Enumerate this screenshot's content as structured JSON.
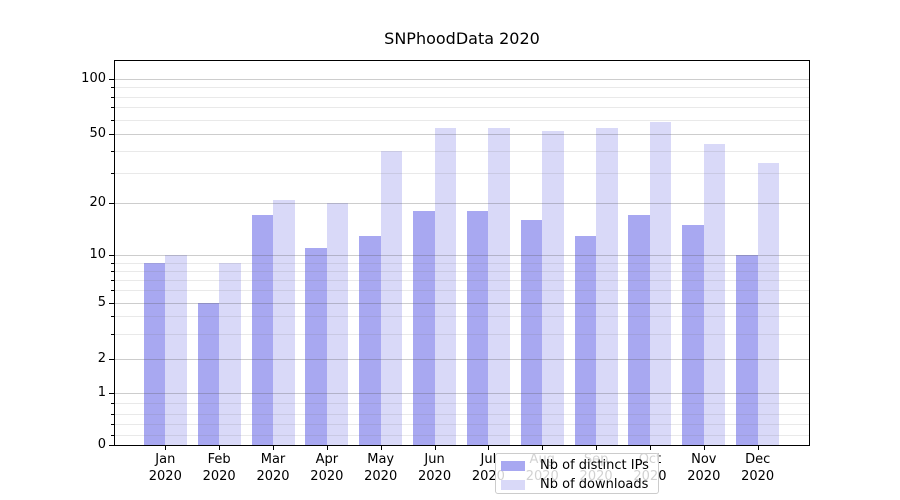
{
  "title": "SNPhoodData 2020",
  "chart_data": {
    "type": "bar",
    "categories": [
      "Jan",
      "Feb",
      "Mar",
      "Apr",
      "May",
      "Jun",
      "Jul",
      "Aug",
      "Sep",
      "Oct",
      "Nov",
      "Dec"
    ],
    "year_label": "2020",
    "series": [
      {
        "name": "Nb of distinct IPs",
        "color": "#a8a8f1",
        "values": [
          9,
          5,
          17,
          11,
          13,
          18,
          18,
          16,
          13,
          17,
          15,
          10
        ]
      },
      {
        "name": "Nb of downloads",
        "color": "#d9d9f8",
        "values": [
          10,
          9,
          21,
          20,
          40,
          54,
          54,
          52,
          54,
          58,
          44,
          34
        ]
      }
    ],
    "yscale": "symlog",
    "yticks": [
      0,
      1,
      2,
      5,
      10,
      20,
      50,
      100
    ],
    "minor_yticks": [
      0.2,
      0.4,
      0.6,
      0.8,
      3,
      4,
      6,
      7,
      8,
      9,
      30,
      40,
      60,
      70,
      80,
      90
    ],
    "ylim": [
      0,
      127
    ],
    "xlabel": "",
    "ylabel": "",
    "grid": true,
    "legend_position": "lower center"
  },
  "colors": {
    "background": "#ffffff",
    "axis": "#000000",
    "bar_dark": "#a8a8f1",
    "bar_light": "#d9d9f8",
    "major_grid": "#c9c9c9",
    "minor_grid": "#e8e8e8",
    "legend_border": "#cccccc"
  }
}
